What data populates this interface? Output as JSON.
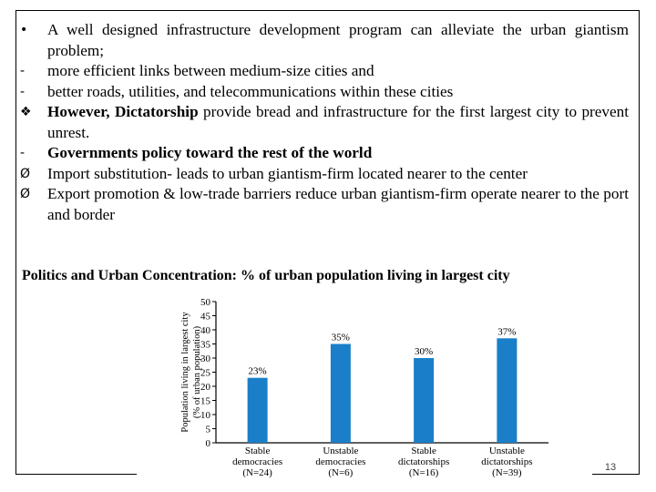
{
  "bullets": [
    {
      "marker": "•",
      "segments": [
        {
          "text": "A well designed infrastructure development program can alleviate the urban giantism problem;",
          "bold": false
        }
      ]
    },
    {
      "marker": "-",
      "segments": [
        {
          "text": "more efficient links between medium-size cities and",
          "bold": false
        }
      ]
    },
    {
      "marker": "-",
      "segments": [
        {
          "text": "better roads, utilities, and telecommunications within these cities",
          "bold": false
        }
      ]
    },
    {
      "marker": "❖",
      "segments": [
        {
          "text": "However, Dictatorship",
          "bold": true
        },
        {
          "text": " provide bread and infrastructure for the first largest city to prevent unrest.",
          "bold": false
        }
      ]
    },
    {
      "marker": "-",
      "segments": [
        {
          "text": "Governments policy toward the rest of the world",
          "bold": true
        }
      ]
    },
    {
      "marker": "Ø",
      "segments": [
        {
          "text": "Import substitution- leads to urban giantism-firm located nearer to the center",
          "bold": false
        }
      ]
    },
    {
      "marker": "Ø",
      "segments": [
        {
          "text": "Export promotion & low-trade barriers reduce urban giantism-firm operate nearer to the port and border",
          "bold": false
        }
      ]
    }
  ],
  "chart_title": "Politics and Urban Concentration: % of urban population living in largest city",
  "page_number": "13",
  "chart_data": {
    "type": "bar",
    "categories": [
      [
        "Stable",
        "democracies",
        "(N=24)"
      ],
      [
        "Unstable",
        "democracies",
        "(N=6)"
      ],
      [
        "Stable",
        "dictatorships",
        "(N=16)"
      ],
      [
        "Unstable",
        "dictatorships",
        "(N=39)"
      ]
    ],
    "values": [
      23,
      35,
      30,
      37
    ],
    "data_labels": [
      "23%",
      "35%",
      "30%",
      "37%"
    ],
    "ylabel": [
      "Population living in largest city",
      "(% of urban population)"
    ],
    "ylim": [
      0,
      50
    ],
    "yticks": [
      "0",
      "5",
      "10",
      "15",
      "20",
      "25",
      "30",
      "35",
      "40",
      "45",
      "50"
    ],
    "colors": {
      "bar": "#1a7fc8",
      "axis": "#000000",
      "label": "#000000"
    }
  }
}
